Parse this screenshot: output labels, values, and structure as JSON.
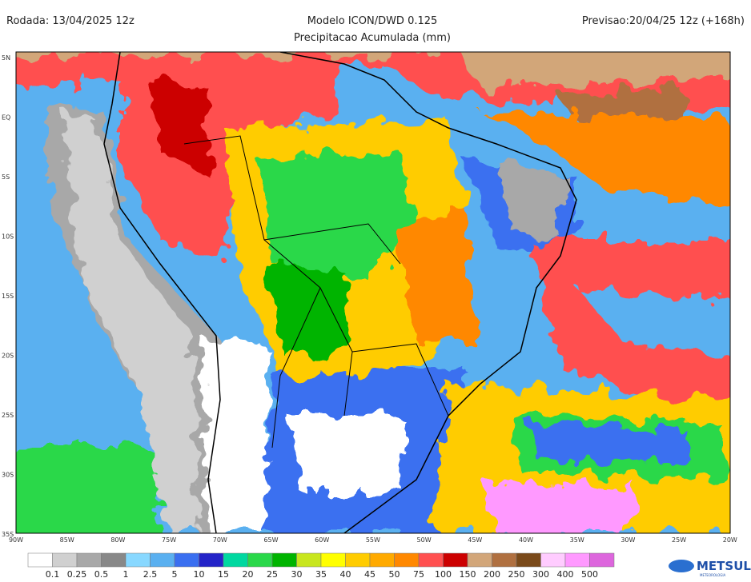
{
  "header": {
    "left": "Rodada: 13/04/2025 12z",
    "center": "Modelo ICON/DWD 0.125",
    "right": "Previsao:20/04/25 12z (+168h)",
    "subtitle": "Precipitacao Acumulada (mm)"
  },
  "axes": {
    "lat_labels": [
      "5N",
      "EQ",
      "5S",
      "10S",
      "15S",
      "20S",
      "25S",
      "30S",
      "35S"
    ],
    "lon_labels": [
      "90W",
      "85W",
      "80W",
      "75W",
      "70W",
      "65W",
      "60W",
      "55W",
      "50W",
      "45W",
      "40W",
      "35W",
      "30W",
      "25W",
      "20W"
    ]
  },
  "legend": {
    "labels": [
      "0.1",
      "0.25",
      "0.5",
      "1",
      "2.5",
      "5",
      "10",
      "15",
      "20",
      "25",
      "30",
      "35",
      "40",
      "45",
      "50",
      "75",
      "100",
      "150",
      "200",
      "250",
      "300",
      "400",
      "500"
    ]
  },
  "logo": {
    "name": "METSUL",
    "tagline": "METEOROLOGIA"
  }
}
